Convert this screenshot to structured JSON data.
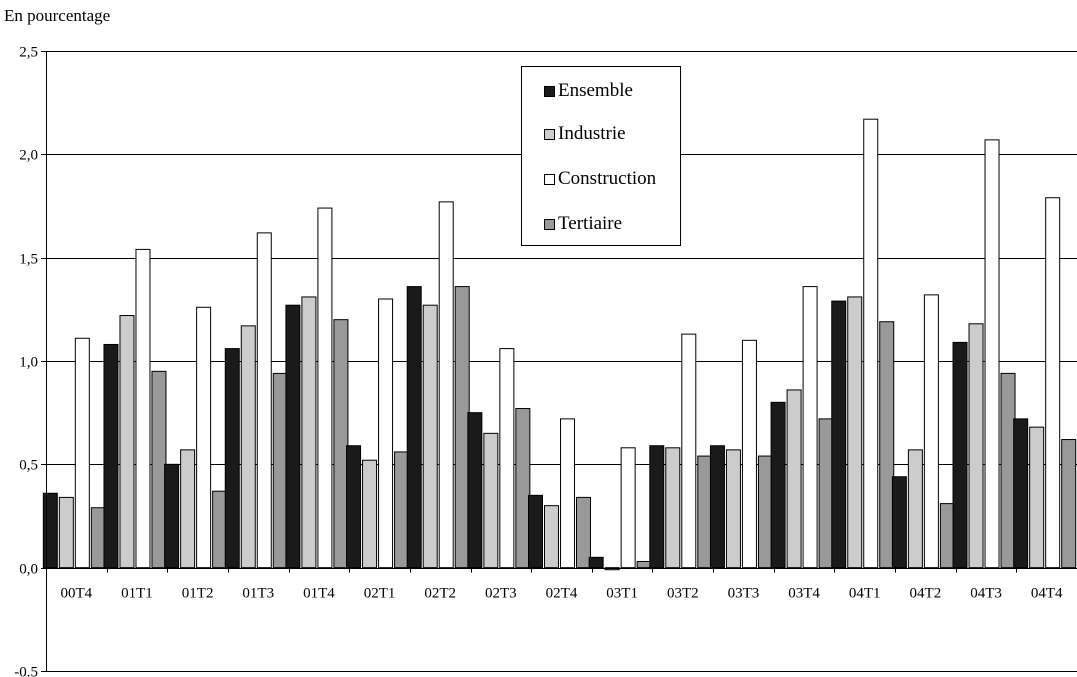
{
  "chart_data": {
    "type": "bar",
    "ylabel": "En pourcentage",
    "ylim": [
      -0.5,
      2.5
    ],
    "yticks": [
      -0.5,
      0.0,
      0.5,
      1.0,
      1.5,
      2.0,
      2.5
    ],
    "ytick_labels": [
      "-0.5",
      "0,0",
      "0,5",
      "1,0",
      "1,5",
      "2,0",
      "2,5"
    ],
    "grid": true,
    "legend_position": "top-center",
    "categories": [
      "00T4",
      "01T1",
      "01T2",
      "01T3",
      "01T4",
      "02T1",
      "02T2",
      "02T3",
      "02T4",
      "03T1",
      "03T2",
      "03T3",
      "03T4",
      "04T1",
      "04T2",
      "04T3",
      "04T4"
    ],
    "series": [
      {
        "name": "Ensemble",
        "color": "#1a1a1a",
        "values": [
          0.36,
          1.08,
          0.5,
          1.06,
          1.27,
          0.59,
          1.36,
          0.75,
          0.35,
          0.05,
          0.59,
          0.59,
          0.8,
          1.29,
          0.44,
          1.09,
          0.72
        ]
      },
      {
        "name": "Industrie",
        "color": "#cccccc",
        "values": [
          0.34,
          1.22,
          0.57,
          1.17,
          1.31,
          0.52,
          1.27,
          0.65,
          0.3,
          -0.01,
          0.58,
          0.57,
          0.86,
          1.31,
          0.57,
          1.18,
          0.68
        ]
      },
      {
        "name": "Construction",
        "color": "#ffffff",
        "values": [
          1.11,
          1.54,
          1.26,
          1.62,
          1.74,
          1.3,
          1.77,
          1.06,
          0.72,
          0.58,
          1.13,
          1.1,
          1.36,
          2.17,
          1.32,
          2.07,
          1.79
        ]
      },
      {
        "name": "Tertiaire",
        "color": "#999999",
        "values": [
          0.29,
          0.95,
          0.37,
          0.94,
          1.2,
          0.56,
          1.36,
          0.77,
          0.34,
          0.03,
          0.54,
          0.54,
          0.72,
          1.19,
          0.31,
          0.94,
          0.62
        ]
      }
    ]
  }
}
